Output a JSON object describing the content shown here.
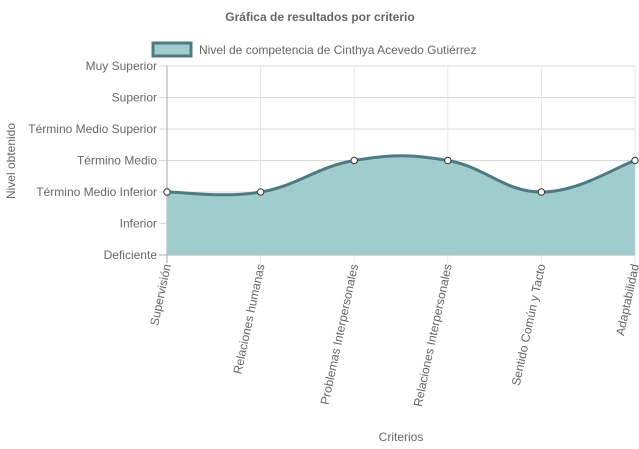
{
  "chart_data": {
    "type": "area",
    "title": "Gráfica de resultados por criterio",
    "xlabel": "Criterios",
    "ylabel": "Nivel obtenido",
    "categories": [
      "Supervisión",
      "Relaciones humanas",
      "Problemas Interpersonales",
      "Relaciones Interpersonales",
      "Sentido Común y Tacto",
      "Adaptabilidad"
    ],
    "y_levels": [
      "Deficiente",
      "Inferior",
      "Término Medio Inferior",
      "Término Medio",
      "Término Medio Superior",
      "Superior",
      "Muy Superior"
    ],
    "ylim": [
      0,
      6
    ],
    "series": [
      {
        "name": "Nivel de competencia de Cinthya Acevedo Gutiérrez",
        "values": [
          2,
          2,
          3,
          3,
          2,
          3
        ],
        "line_color": "#4f7a80",
        "fill_color": "#a1ccce"
      }
    ],
    "legend_position": "top",
    "grid": true
  }
}
